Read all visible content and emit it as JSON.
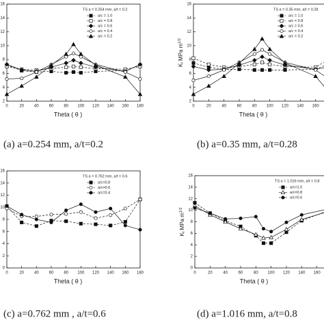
{
  "chart_data": [
    {
      "type": "line",
      "annotation": "TS  a = 0.254 mm,  a/t = 0.2",
      "xlabel": "Theta ( θ )",
      "caption": "(a) a=0.254 mm, a/t=0.2",
      "xlim": [
        0,
        180
      ],
      "xticks": [
        0,
        20,
        40,
        60,
        80,
        100,
        120,
        140,
        160,
        180
      ],
      "ylim": [
        2,
        16
      ],
      "yticks": [
        2,
        4,
        6,
        8,
        10,
        12,
        14,
        16
      ],
      "x": [
        0,
        20,
        40,
        60,
        80,
        90,
        100,
        120,
        160,
        180
      ],
      "series": [
        {
          "name": "a/c = 1.0",
          "marker": "square",
          "linestyle": "dash",
          "values": [
            7.2,
            6.4,
            6.2,
            6.3,
            6.1,
            6.2,
            6.1,
            6.3,
            6.4,
            7.2
          ]
        },
        {
          "name": "a/c = 0.8",
          "marker": "square-open",
          "linestyle": "dash",
          "values": [
            7.0,
            6.6,
            6.5,
            6.7,
            6.9,
            7.0,
            6.9,
            6.7,
            6.6,
            7.0
          ]
        },
        {
          "name": "a/c = 0.6",
          "marker": "diamond",
          "linestyle": "solid",
          "values": [
            7.3,
            6.5,
            6.3,
            6.9,
            7.5,
            7.9,
            7.5,
            6.9,
            6.3,
            7.3
          ]
        },
        {
          "name": "a/c = 0.4",
          "marker": "circle-open",
          "linestyle": "solid",
          "values": [
            5.2,
            5.3,
            6.2,
            7.3,
            8.4,
            8.9,
            8.4,
            7.3,
            6.2,
            5.2
          ]
        },
        {
          "name": "a/c = 0.2",
          "marker": "triangle",
          "linestyle": "solid",
          "values": [
            3.0,
            4.2,
            5.5,
            7.2,
            8.8,
            10.2,
            8.8,
            7.2,
            5.5,
            3.0
          ]
        }
      ]
    },
    {
      "type": "line",
      "annotation": "TS  a = 0.35 mm,  a/t = 0.28",
      "xlabel": "Theta ( θ )",
      "ylabel_parts": [
        "K",
        "I",
        "  MPa m",
        "1/2"
      ],
      "caption": "(b) a=0.35 mm, a/t=0.28",
      "xlim": [
        0,
        180
      ],
      "xticks": [
        0,
        20,
        40,
        60,
        80,
        100,
        120,
        140,
        160,
        180
      ],
      "ylim": [
        2,
        16
      ],
      "yticks": [
        2,
        4,
        6,
        8,
        10,
        12,
        14,
        16
      ],
      "x": [
        0,
        20,
        40,
        60,
        80,
        90,
        100,
        120,
        160,
        180
      ],
      "series": [
        {
          "name": "a/c = 1.0",
          "marker": "square",
          "linestyle": "dash",
          "values": [
            7.5,
            6.9,
            6.6,
            6.6,
            6.5,
            6.5,
            6.5,
            6.5,
            6.6,
            7.5
          ]
        },
        {
          "name": "a/c = 0.8",
          "marker": "square-open",
          "linestyle": "dash",
          "values": [
            8.2,
            7.3,
            6.9,
            7.0,
            7.3,
            7.6,
            7.3,
            7.0,
            6.9,
            8.2
          ]
        },
        {
          "name": "a/c = 0.6",
          "marker": "diamond",
          "linestyle": "solid",
          "values": [
            7.0,
            6.5,
            6.6,
            7.2,
            7.9,
            8.4,
            7.9,
            7.2,
            6.6,
            7.0
          ]
        },
        {
          "name": "a/c = 0.4",
          "marker": "circle-open",
          "linestyle": "solid",
          "values": [
            5.0,
            5.6,
            6.5,
            7.6,
            8.8,
            9.4,
            8.8,
            7.6,
            6.5,
            5.0
          ]
        },
        {
          "name": "a/c = 0.2",
          "marker": "triangle",
          "linestyle": "solid",
          "values": [
            3.0,
            4.2,
            5.6,
            7.5,
            9.5,
            11.0,
            9.5,
            7.5,
            5.6,
            3.0
          ]
        }
      ]
    },
    {
      "type": "line",
      "annotation": "TS  a = 0.762 mm,  a/t = 0.6",
      "xlabel": "Theta ( θ )",
      "caption": "(c) a=0.762 mm , a/t=0.6",
      "xlim": [
        0,
        180
      ],
      "xticks": [
        0,
        20,
        40,
        60,
        80,
        100,
        120,
        140,
        160,
        180
      ],
      "ylim": [
        0,
        16
      ],
      "yticks": [
        0,
        2,
        4,
        6,
        8,
        10,
        12,
        14,
        16
      ],
      "x": [
        0,
        20,
        40,
        60,
        80,
        100,
        120,
        140,
        160,
        180
      ],
      "series": [
        {
          "name": "a/c=0.8",
          "marker": "square",
          "linestyle": "dash",
          "values": [
            10.2,
            7.5,
            6.9,
            7.8,
            7.7,
            7.3,
            7.2,
            7.0,
            7.6,
            11.3
          ]
        },
        {
          "name": "a/c=0.6",
          "marker": "circle-open",
          "linestyle": "dash",
          "values": [
            9.8,
            8.5,
            8.5,
            8.8,
            8.9,
            9.2,
            8.2,
            8.7,
            9.8,
            11.3
          ]
        },
        {
          "name": "a/c=0.4",
          "marker": "circle",
          "linestyle": "solid",
          "values": [
            10.2,
            8.8,
            8.0,
            7.5,
            9.5,
            10.5,
            9.2,
            9.8,
            7.0,
            6.3
          ]
        }
      ]
    },
    {
      "type": "line",
      "annotation": "TS  a = 1.016 mm,  a/t = 0.8",
      "xlabel": "Theta ( θ )",
      "ylabel_parts": [
        "K",
        "I",
        "  MPa m",
        "1/2"
      ],
      "caption": "(d) a=1.016 mm, a/t=0.8",
      "xlim": [
        0,
        180
      ],
      "xticks": [
        0,
        20,
        40,
        60,
        80,
        100,
        120,
        140,
        160,
        180
      ],
      "ylim": [
        0,
        16
      ],
      "yticks": [
        0,
        2,
        4,
        6,
        8,
        10,
        12,
        14,
        16
      ],
      "x": [
        0,
        20,
        40,
        60,
        80,
        90,
        100,
        120,
        140,
        180
      ],
      "series": [
        {
          "name": "a/c=1.0",
          "marker": "square",
          "linestyle": "dash",
          "values": [
            11.3,
            9.5,
            8.2,
            7.2,
            5.6,
            4.3,
            4.3,
            6.2,
            8.2,
            10.2
          ]
        },
        {
          "name": "a/c=0.8",
          "marker": "triangle-open",
          "linestyle": "solid",
          "values": [
            10.8,
            9.2,
            8.0,
            6.8,
            5.8,
            5.2,
            5.3,
            6.7,
            8.4,
            10.0
          ]
        },
        {
          "name": "a/c=0.6",
          "marker": "circle",
          "linestyle": "solid",
          "values": [
            10.4,
            9.5,
            8.5,
            8.6,
            8.9,
            6.8,
            6.3,
            7.9,
            9.2,
            10.4
          ]
        }
      ]
    }
  ]
}
